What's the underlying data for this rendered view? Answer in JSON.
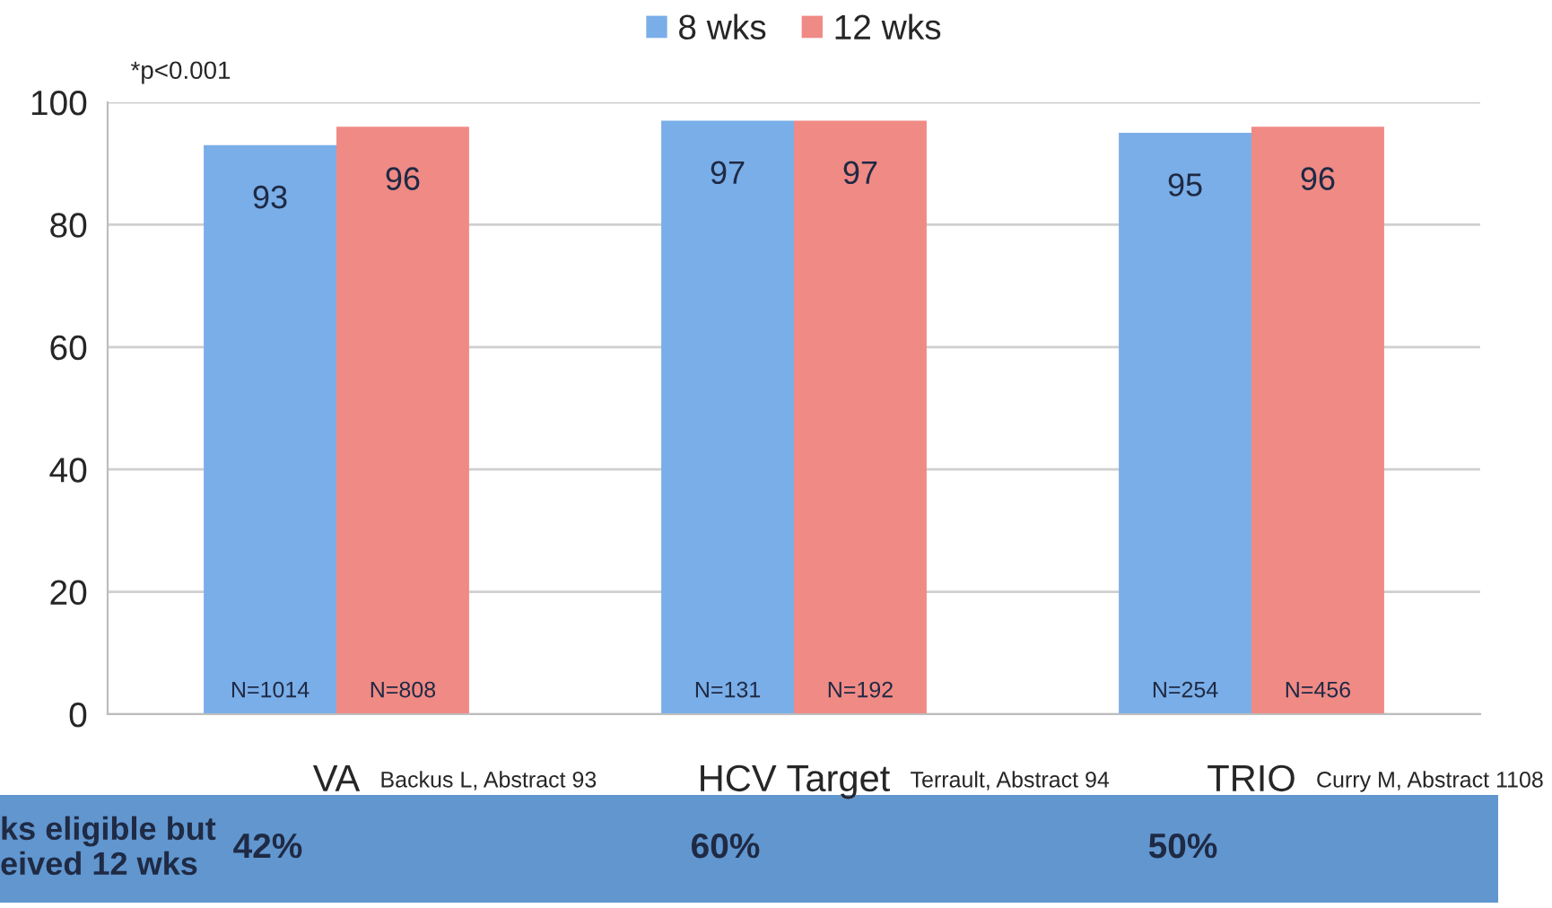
{
  "chart_data": {
    "type": "bar",
    "categories": [
      "VA",
      "HCV Target",
      "TRIO"
    ],
    "series": [
      {
        "name": "8 wks",
        "color": "#7aaee8",
        "values": [
          93,
          97,
          95
        ]
      },
      {
        "name": "12 wks",
        "color": "#f08a85",
        "values": [
          96,
          97,
          96
        ]
      }
    ],
    "ylim": [
      0,
      100
    ],
    "yticks": [
      0,
      20,
      40,
      60,
      80,
      100
    ],
    "grid": "y",
    "legend": "top",
    "data_labels": true,
    "annotations": [
      "*p<0.001",
      "Backus L, Abstract 93",
      "Terrault, Abstract 94",
      "Curry M, Abstract 1108",
      "ks eligible but\neived 12 wks",
      "42%",
      "60%",
      "50%",
      "N=1014",
      "N=808",
      "N=131",
      "N=192",
      "N=254",
      "N=456"
    ]
  }
}
